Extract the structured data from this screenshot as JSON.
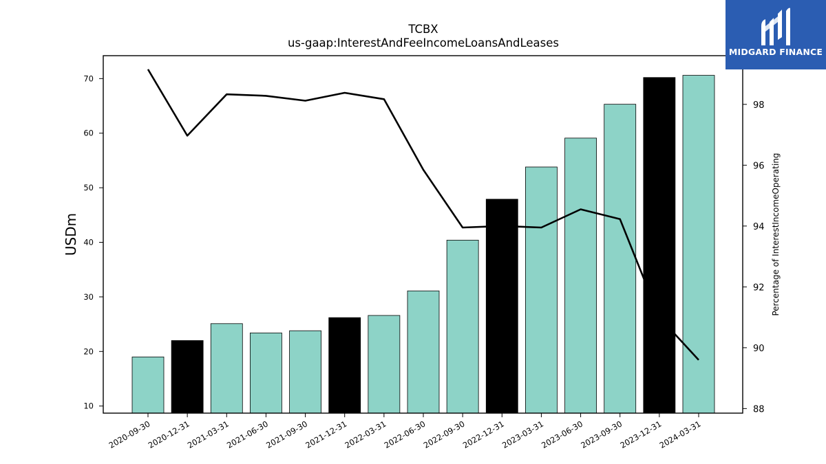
{
  "chart_data": {
    "type": "bar",
    "title": "TCBX",
    "subtitle": "us-gaap:InterestAndFeeIncomeLoansAndLeases",
    "ylabel": "USDm",
    "y2label": "Percentage of InterestIncomeOperating",
    "categories": [
      "2020-09-30",
      "2020-12-31",
      "2021-03-31",
      "2021-06-30",
      "2021-09-30",
      "2021-12-31",
      "2022-03-31",
      "2022-06-30",
      "2022-09-30",
      "2022-12-31",
      "2023-03-31",
      "2023-06-30",
      "2023-09-30",
      "2023-12-31",
      "2024-03-31"
    ],
    "ylim": [
      8.7,
      74.2
    ],
    "y2lim": [
      87.85,
      99.6
    ],
    "yticks": [
      10,
      20,
      30,
      40,
      50,
      60,
      70
    ],
    "y2ticks": [
      88,
      90,
      92,
      94,
      96,
      98
    ],
    "series": [
      {
        "kind": "bar",
        "values": [
          19.0,
          22.0,
          25.1,
          23.4,
          23.8,
          26.2,
          26.6,
          31.1,
          40.4,
          47.9,
          53.8,
          59.1,
          65.3,
          70.2,
          70.6
        ],
        "colors": [
          "#8dd3c7",
          "#000000",
          "#8dd3c7",
          "#8dd3c7",
          "#8dd3c7",
          "#000000",
          "#8dd3c7",
          "#8dd3c7",
          "#8dd3c7",
          "#000000",
          "#8dd3c7",
          "#8dd3c7",
          "#8dd3c7",
          "#000000",
          "#8dd3c7"
        ]
      },
      {
        "kind": "line",
        "axis": "right",
        "color": "#000000",
        "values": [
          99.15,
          96.97,
          98.33,
          98.28,
          98.12,
          98.38,
          98.17,
          95.85,
          93.95,
          94.0,
          93.95,
          94.55,
          94.23,
          91.0,
          89.6
        ]
      }
    ],
    "grid": false
  },
  "logo": {
    "text": "MIDGARD FINANCE",
    "background": "#2b5db2"
  }
}
